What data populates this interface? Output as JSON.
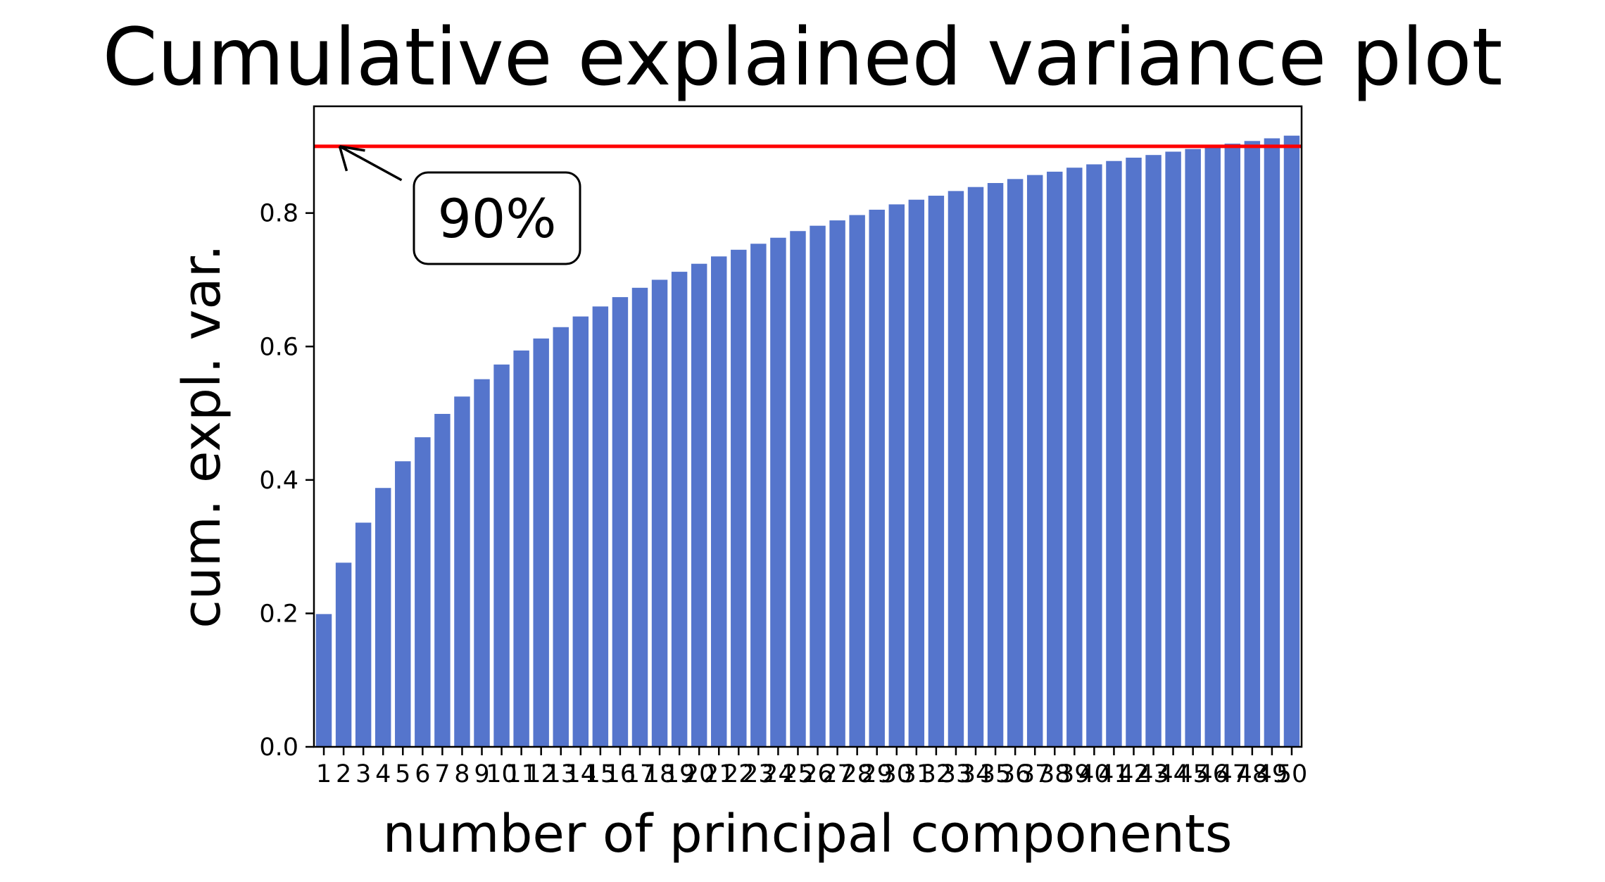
{
  "chart_data": {
    "type": "bar",
    "title": "Cumulative explained variance plot",
    "xlabel": "number of principal components",
    "ylabel": "cum. expl. var.",
    "categories": [
      "1",
      "2",
      "3",
      "4",
      "5",
      "6",
      "7",
      "8",
      "9",
      "10",
      "11",
      "12",
      "13",
      "14",
      "15",
      "16",
      "17",
      "18",
      "19",
      "20",
      "21",
      "22",
      "23",
      "24",
      "25",
      "26",
      "27",
      "28",
      "29",
      "30",
      "31",
      "32",
      "33",
      "34",
      "35",
      "36",
      "37",
      "38",
      "39",
      "40",
      "41",
      "42",
      "43",
      "44",
      "45",
      "46",
      "47",
      "48",
      "49",
      "50"
    ],
    "values": [
      0.199,
      0.276,
      0.336,
      0.388,
      0.428,
      0.464,
      0.499,
      0.525,
      0.551,
      0.573,
      0.594,
      0.612,
      0.629,
      0.645,
      0.66,
      0.674,
      0.688,
      0.7,
      0.712,
      0.724,
      0.735,
      0.745,
      0.754,
      0.763,
      0.773,
      0.781,
      0.789,
      0.797,
      0.805,
      0.813,
      0.82,
      0.826,
      0.833,
      0.839,
      0.845,
      0.851,
      0.857,
      0.862,
      0.868,
      0.873,
      0.878,
      0.883,
      0.887,
      0.892,
      0.896,
      0.9,
      0.904,
      0.908,
      0.912,
      0.916
    ],
    "ylim": [
      0.0,
      0.96
    ],
    "yticks": [
      "0.0",
      "0.2",
      "0.4",
      "0.6",
      "0.8"
    ],
    "grid": false,
    "bar_color": "#5575cc",
    "reference_line": {
      "y": 0.9,
      "color": "#ff0000"
    },
    "annotation": {
      "text": "90%",
      "points_to": {
        "x": 1.8,
        "y": 0.9
      }
    }
  }
}
